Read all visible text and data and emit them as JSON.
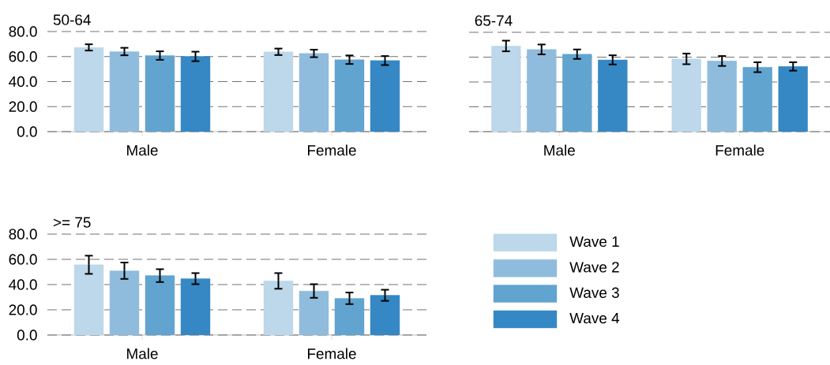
{
  "chart_data": [
    {
      "type": "bar",
      "title": "50-64",
      "categories": [
        "Male",
        "Female"
      ],
      "ylim": [
        0,
        80
      ],
      "yticks": [
        {
          "value": 0,
          "label": "0.0"
        },
        {
          "value": 20,
          "label": "20.0"
        },
        {
          "value": 40,
          "label": "40.0"
        },
        {
          "value": 60,
          "label": "60.0"
        },
        {
          "value": 80,
          "label": "80.0"
        }
      ],
      "grid": "y",
      "series": [
        {
          "color": "#bcd8ea",
          "values": [
            67.3,
            63.8
          ],
          "errors": [
            2.5,
            2.6
          ]
        },
        {
          "color": "#8fbcdd",
          "values": [
            64.0,
            62.5
          ],
          "errors": [
            3.0,
            3.0
          ]
        },
        {
          "color": "#62a4d0",
          "values": [
            60.8,
            57.5
          ],
          "errors": [
            3.4,
            3.4
          ]
        },
        {
          "color": "#3588c4",
          "values": [
            60.1,
            56.8
          ],
          "errors": [
            3.8,
            3.6
          ]
        }
      ]
    },
    {
      "type": "bar",
      "title": "65-74",
      "categories": [
        "Male",
        "Female"
      ],
      "ylim": [
        0,
        80
      ],
      "yticks": [
        0,
        20,
        40,
        60,
        80
      ],
      "grid": "y",
      "tick_labels": "x",
      "series": [
        {
          "color": "#bcd8ea",
          "values": [
            69.0,
            58.6
          ],
          "errors": [
            4.3,
            4.3
          ]
        },
        {
          "color": "#8fbcdd",
          "values": [
            66.2,
            56.9
          ],
          "errors": [
            4.0,
            4.0
          ]
        },
        {
          "color": "#62a4d0",
          "values": [
            62.4,
            51.9
          ],
          "errors": [
            3.8,
            4.0
          ]
        },
        {
          "color": "#3588c4",
          "values": [
            57.8,
            52.5
          ],
          "errors": [
            3.7,
            3.4
          ]
        }
      ]
    },
    {
      "type": "bar",
      "title": ">= 75",
      "categories": [
        "Male",
        "Female"
      ],
      "ylim": [
        0,
        80
      ],
      "yticks": [
        {
          "value": 0,
          "label": "0.0"
        },
        {
          "value": 20,
          "label": "20.0"
        },
        {
          "value": 40,
          "label": "40.0"
        },
        {
          "value": 60,
          "label": "60.0"
        },
        {
          "value": 80,
          "label": "80.0"
        }
      ],
      "grid": "y",
      "legend": "right",
      "series": [
        {
          "name": "Wave 1",
          "color": "#bcd8ea",
          "values": [
            55.7,
            42.9
          ],
          "errors": [
            7.2,
            6.2
          ]
        },
        {
          "name": "Wave 2",
          "color": "#8fbcdd",
          "values": [
            51.0,
            34.9
          ],
          "errors": [
            6.5,
            5.4
          ]
        },
        {
          "name": "Wave 3",
          "color": "#62a4d0",
          "values": [
            47.1,
            29.1
          ],
          "errors": [
            5.1,
            4.6
          ]
        },
        {
          "name": "Wave  4",
          "color": "#3588c4",
          "values": [
            44.7,
            31.5
          ],
          "errors": [
            4.4,
            4.4
          ]
        }
      ]
    }
  ]
}
